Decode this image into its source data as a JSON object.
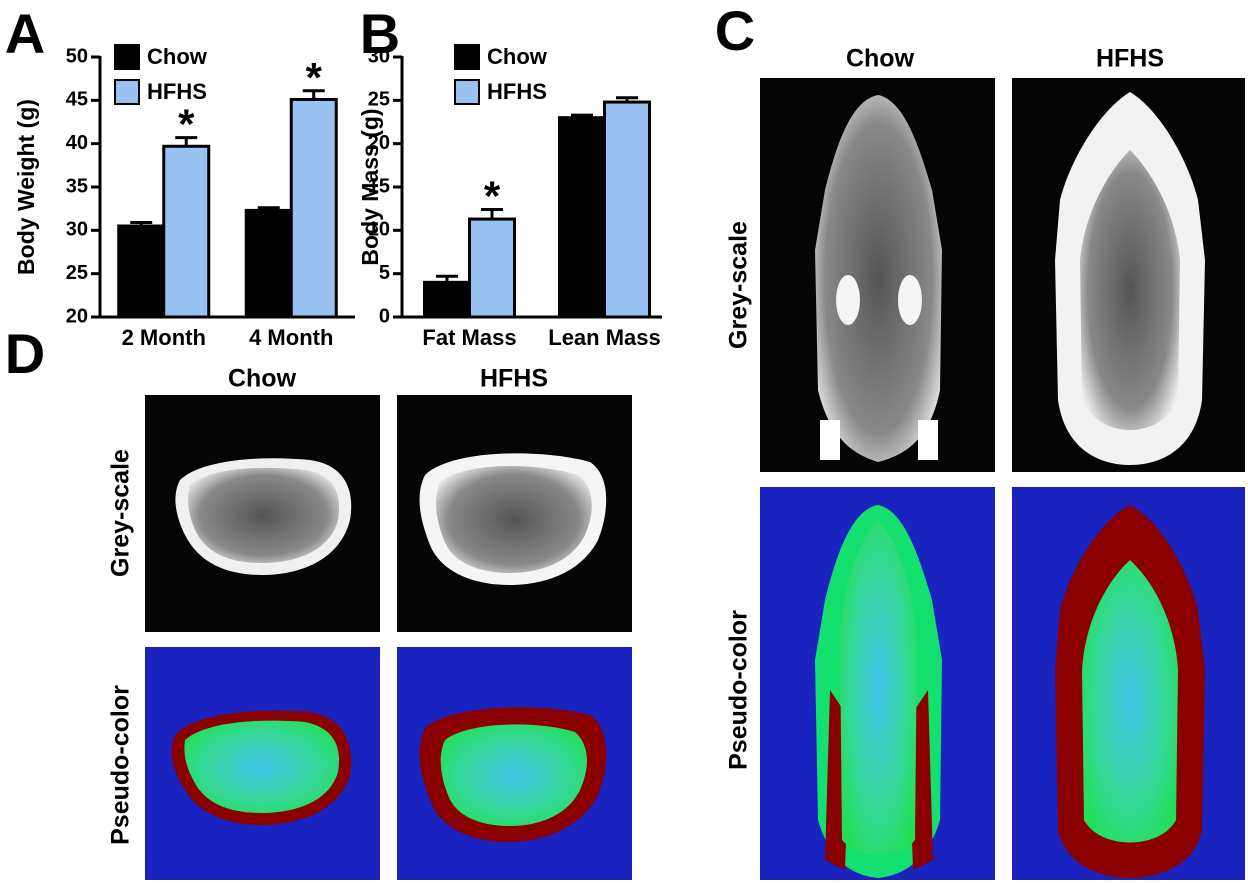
{
  "chart_data": [
    {
      "type": "bar",
      "panel": "A",
      "ylabel": "Body Weight (g)",
      "categories": [
        "2 Month",
        "4 Month"
      ],
      "series": [
        {
          "name": "Chow",
          "color": "#000000",
          "values": [
            30.5,
            32.3
          ],
          "errors": [
            0.4,
            0.3
          ]
        },
        {
          "name": "HFHS",
          "color": "#99c2f2",
          "values": [
            39.7,
            45.1
          ],
          "errors": [
            1.0,
            1.0
          ],
          "significance": [
            "*",
            "*"
          ]
        }
      ],
      "ylim": [
        20,
        50
      ],
      "yticks": [
        20,
        25,
        30,
        35,
        40,
        45,
        50
      ]
    },
    {
      "type": "bar",
      "panel": "B",
      "ylabel": "Body Mass (g)",
      "categories": [
        "Fat Mass",
        "Lean Mass"
      ],
      "series": [
        {
          "name": "Chow",
          "color": "#000000",
          "values": [
            4.0,
            23.0
          ],
          "errors": [
            0.7,
            0.3
          ]
        },
        {
          "name": "HFHS",
          "color": "#99c2f2",
          "values": [
            11.3,
            24.8
          ],
          "errors": [
            1.1,
            0.5
          ],
          "significance": [
            "*",
            null
          ]
        }
      ],
      "ylim": [
        0,
        30
      ],
      "yticks": [
        0,
        5,
        10,
        15,
        20,
        25,
        30
      ]
    }
  ],
  "image_panels": [
    {
      "panel": "C",
      "columns": [
        "Chow",
        "HFHS"
      ],
      "rows": [
        "Grey-scale",
        "Pseudo-color"
      ]
    },
    {
      "panel": "D",
      "columns": [
        "Chow",
        "HFHS"
      ],
      "rows": [
        "Grey-scale",
        "Pseudo-color"
      ]
    }
  ]
}
